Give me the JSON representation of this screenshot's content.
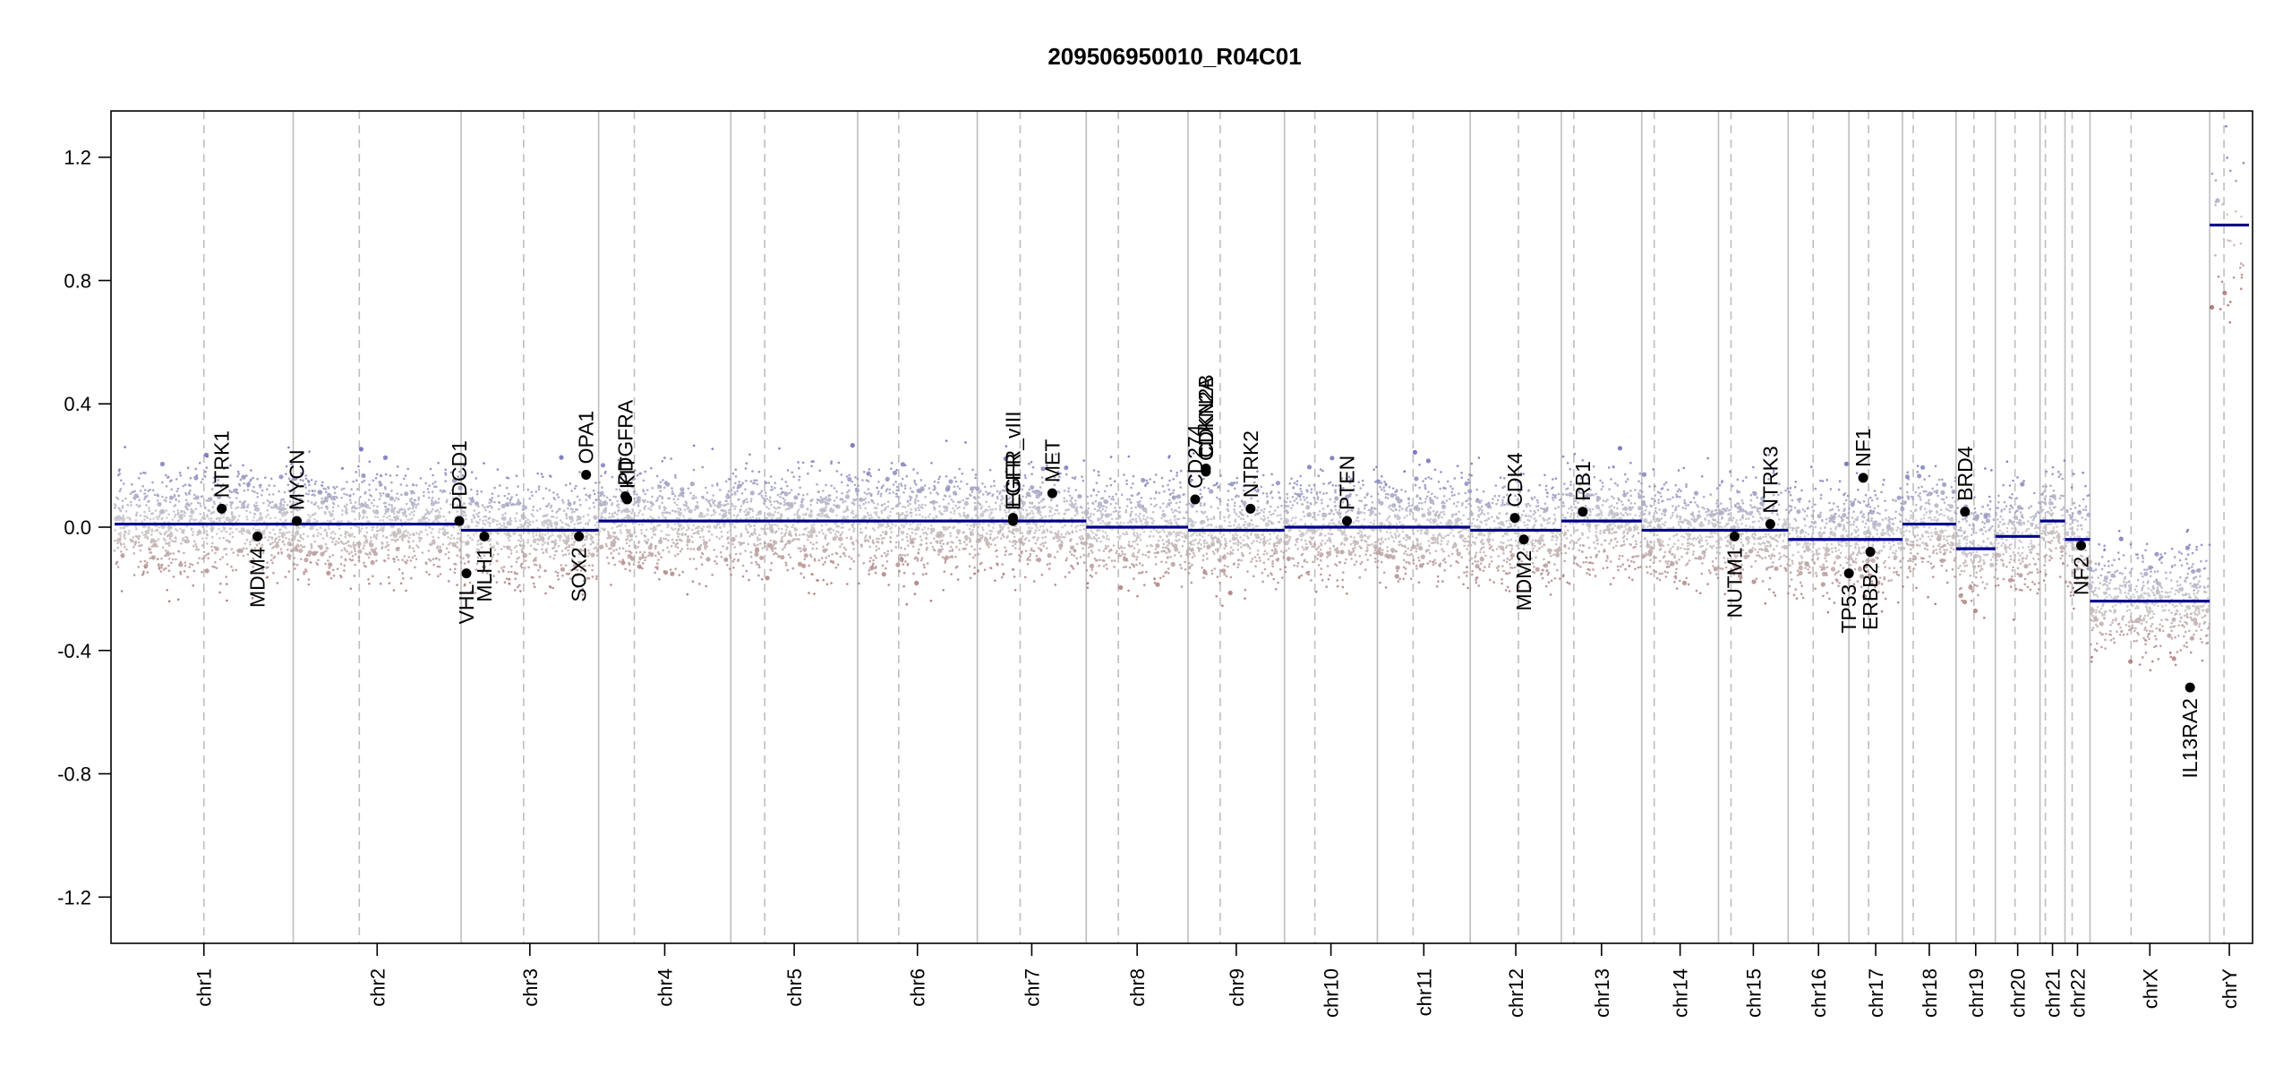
{
  "chart_data": {
    "type": "scatter",
    "title": "209506950010_R04C01",
    "xlabel": "",
    "ylabel": "",
    "ylim": [
      -1.35,
      1.35
    ],
    "yticks": [
      {
        "value": 1.2,
        "label": "1.2"
      },
      {
        "value": 0.8,
        "label": "0.8"
      },
      {
        "value": 0.4,
        "label": "0.4"
      },
      {
        "value": 0.0,
        "label": "0.0"
      },
      {
        "value": -0.4,
        "label": "-0.4"
      },
      {
        "value": -0.8,
        "label": "-0.8"
      },
      {
        "value": -1.2,
        "label": "-1.2"
      }
    ],
    "grid": false,
    "colors": {
      "segment": "#00008b",
      "gain": "#5a5ab4",
      "loss": "#a05a5a",
      "neutral": "#c8c8c8",
      "gene_point": "#000000",
      "chrom_boundary": "#bebebe",
      "centromere": "#bebebe"
    },
    "chromosomes": [
      {
        "name": "chr1",
        "start": 0,
        "end": 100,
        "centromere": 50
      },
      {
        "name": "chr2",
        "start": 100,
        "end": 194,
        "centromere": 137
      },
      {
        "name": "chr3",
        "start": 194,
        "end": 271,
        "centromere": 229
      },
      {
        "name": "chr4",
        "start": 271,
        "end": 345,
        "centromere": 291
      },
      {
        "name": "chr5",
        "start": 345,
        "end": 416,
        "centromere": 364
      },
      {
        "name": "chr6",
        "start": 416,
        "end": 483,
        "centromere": 439
      },
      {
        "name": "chr7",
        "start": 483,
        "end": 544,
        "centromere": 507
      },
      {
        "name": "chr8",
        "start": 544,
        "end": 601,
        "centromere": 562
      },
      {
        "name": "chr9",
        "start": 601,
        "end": 655,
        "centromere": 619
      },
      {
        "name": "chr10",
        "start": 655,
        "end": 707,
        "centromere": 672
      },
      {
        "name": "chr11",
        "start": 707,
        "end": 759,
        "centromere": 727
      },
      {
        "name": "chr12",
        "start": 759,
        "end": 810,
        "centromere": 786
      },
      {
        "name": "chr13",
        "start": 810,
        "end": 855,
        "centromere": 817
      },
      {
        "name": "chr14",
        "start": 855,
        "end": 898,
        "centromere": 862
      },
      {
        "name": "chr15",
        "start": 898,
        "end": 937,
        "centromere": 905
      },
      {
        "name": "chr16",
        "start": 937,
        "end": 971,
        "centromere": 951
      },
      {
        "name": "chr17",
        "start": 971,
        "end": 1001,
        "centromere": 982
      },
      {
        "name": "chr18",
        "start": 1001,
        "end": 1031,
        "centromere": 1007
      },
      {
        "name": "chr19",
        "start": 1031,
        "end": 1053,
        "centromere": 1041
      },
      {
        "name": "chr20",
        "start": 1053,
        "end": 1078,
        "centromere": 1064
      },
      {
        "name": "chr21",
        "start": 1078,
        "end": 1092,
        "centromere": 1081
      },
      {
        "name": "chr22",
        "start": 1092,
        "end": 1106,
        "centromere": 1096
      },
      {
        "name": "chrX",
        "start": 1106,
        "end": 1173,
        "centromere": 1129
      },
      {
        "name": "chrY",
        "start": 1173,
        "end": 1195,
        "centromere": 1181
      }
    ],
    "segments": [
      {
        "chr": "chr1",
        "start": 0,
        "end": 100,
        "value": 0.01
      },
      {
        "chr": "chr2",
        "start": 100,
        "end": 194,
        "value": 0.01
      },
      {
        "chr": "chr3",
        "start": 194,
        "end": 271,
        "value": -0.01
      },
      {
        "chr": "chr4",
        "start": 271,
        "end": 345,
        "value": 0.02
      },
      {
        "chr": "chr5",
        "start": 345,
        "end": 416,
        "value": 0.02
      },
      {
        "chr": "chr6",
        "start": 416,
        "end": 483,
        "value": 0.02
      },
      {
        "chr": "chr7",
        "start": 483,
        "end": 544,
        "value": 0.02
      },
      {
        "chr": "chr8",
        "start": 544,
        "end": 601,
        "value": 0.0
      },
      {
        "chr": "chr9",
        "start": 601,
        "end": 655,
        "value": -0.01
      },
      {
        "chr": "chr10",
        "start": 655,
        "end": 707,
        "value": 0.0
      },
      {
        "chr": "chr11",
        "start": 707,
        "end": 759,
        "value": 0.0
      },
      {
        "chr": "chr12",
        "start": 759,
        "end": 810,
        "value": -0.01
      },
      {
        "chr": "chr13",
        "start": 810,
        "end": 855,
        "value": 0.02
      },
      {
        "chr": "chr14",
        "start": 855,
        "end": 898,
        "value": -0.01
      },
      {
        "chr": "chr15",
        "start": 898,
        "end": 937,
        "value": -0.01
      },
      {
        "chr": "chr16",
        "start": 937,
        "end": 971,
        "value": -0.04
      },
      {
        "chr": "chr17",
        "start": 971,
        "end": 1001,
        "value": -0.04
      },
      {
        "chr": "chr18",
        "start": 1001,
        "end": 1031,
        "value": 0.01
      },
      {
        "chr": "chr19",
        "start": 1031,
        "end": 1053,
        "value": -0.07
      },
      {
        "chr": "chr20",
        "start": 1053,
        "end": 1078,
        "value": -0.03
      },
      {
        "chr": "chr21",
        "start": 1078,
        "end": 1092,
        "value": 0.02
      },
      {
        "chr": "chr22",
        "start": 1092,
        "end": 1106,
        "value": -0.04
      },
      {
        "chr": "chrX",
        "start": 1106,
        "end": 1173,
        "value": -0.24
      },
      {
        "chr": "chrY",
        "start": 1173,
        "end": 1195,
        "value": 0.98
      }
    ],
    "genes": [
      {
        "name": "NTRK1",
        "pos": 60,
        "value": 0.06
      },
      {
        "name": "MDM4",
        "pos": 80,
        "value": -0.03
      },
      {
        "name": "MYCN",
        "pos": 102,
        "value": 0.02
      },
      {
        "name": "PDCD1",
        "pos": 193,
        "value": 0.02
      },
      {
        "name": "VHL",
        "pos": 197,
        "value": -0.15
      },
      {
        "name": "MLH1",
        "pos": 207,
        "value": -0.03
      },
      {
        "name": "SOX2",
        "pos": 260,
        "value": -0.03
      },
      {
        "name": "OPA1",
        "pos": 264,
        "value": 0.17
      },
      {
        "name": "PDGFRA",
        "pos": 286,
        "value": 0.1
      },
      {
        "name": "KIT",
        "pos": 287,
        "value": 0.09
      },
      {
        "name": "EGFR",
        "pos": 503,
        "value": 0.02
      },
      {
        "name": "EGFR_vIII",
        "pos": 503,
        "value": 0.03
      },
      {
        "name": "MET",
        "pos": 525,
        "value": 0.11
      },
      {
        "name": "CD274",
        "pos": 605,
        "value": 0.09
      },
      {
        "name": "CDKN2A",
        "pos": 611,
        "value": 0.18
      },
      {
        "name": "CDKN2B",
        "pos": 611,
        "value": 0.19
      },
      {
        "name": "NTRK2",
        "pos": 636,
        "value": 0.06
      },
      {
        "name": "PTEN",
        "pos": 690,
        "value": 0.02
      },
      {
        "name": "CDK4",
        "pos": 784,
        "value": 0.03
      },
      {
        "name": "MDM2",
        "pos": 789,
        "value": -0.04
      },
      {
        "name": "RB1",
        "pos": 822,
        "value": 0.05
      },
      {
        "name": "NUTM1",
        "pos": 907,
        "value": -0.03
      },
      {
        "name": "NTRK3",
        "pos": 927,
        "value": 0.01
      },
      {
        "name": "TP53",
        "pos": 971,
        "value": -0.15
      },
      {
        "name": "NF1",
        "pos": 979,
        "value": 0.16
      },
      {
        "name": "ERBB2",
        "pos": 983,
        "value": -0.08
      },
      {
        "name": "BRD4",
        "pos": 1036,
        "value": 0.05
      },
      {
        "name": "NF2",
        "pos": 1101,
        "value": -0.06
      },
      {
        "name": "IL13RA2",
        "pos": 1162,
        "value": -0.52
      }
    ]
  }
}
